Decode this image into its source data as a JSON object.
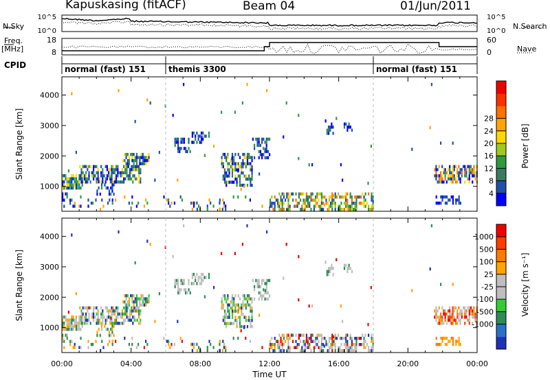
{
  "header": {
    "station": "Kapuskasing (fitACF)",
    "beam": "Beam 04",
    "date": "01/Jun/2011"
  },
  "top_panels": {
    "nsky_label": "N.Sky",
    "nsky_ticks": [
      "10^5",
      "10^0"
    ],
    "nsearch_label": "N.Search",
    "nsearch_ticks": [
      "10^5",
      "10^0"
    ],
    "freq_label": "Freq.",
    "freq_unit": "[MHz]",
    "freq_ticks": [
      "18",
      "8"
    ],
    "nave_label": "Nave",
    "nave_ticks": [
      "60",
      "0"
    ],
    "cpid_label": "CPID",
    "cpid_segments": [
      {
        "label": "normal (fast) 151",
        "start_hour": 0,
        "end_hour": 6
      },
      {
        "label": "themis 3300",
        "start_hour": 6,
        "end_hour": 18
      },
      {
        "label": "normal (fast) 151",
        "start_hour": 18,
        "end_hour": 24
      }
    ]
  },
  "chart_data": [
    {
      "type": "heatmap",
      "name": "power-panel",
      "ylabel": "Slant Range [km]",
      "xlabel": "Time UT",
      "x_ticks": [
        "00:00",
        "04:00",
        "08:00",
        "12:00",
        "16:00",
        "20:00",
        "00:00"
      ],
      "xlim": [
        0,
        24
      ],
      "ylim": [
        180,
        4600
      ],
      "y_ticks": [
        1000,
        2000,
        3000,
        4000
      ],
      "colorbar": {
        "label": "Power [dB]",
        "ticks": [
          "4",
          "8",
          "12",
          "16",
          "20",
          "24",
          "28"
        ],
        "colors": [
          "#0000ff",
          "#1f4faa",
          "#3a7a60",
          "#2e9a40",
          "#a0c81e",
          "#ffd700",
          "#ffa500",
          "#ff7000",
          "#ff3000",
          "#ee0000"
        ]
      }
    },
    {
      "type": "heatmap",
      "name": "velocity-panel",
      "ylabel": "Slant Range [km]",
      "xlabel": "Time UT",
      "x_ticks": [
        "00:00",
        "04:00",
        "08:00",
        "12:00",
        "16:00",
        "20:00",
        "00:00"
      ],
      "xlim": [
        0,
        24
      ],
      "ylim": [
        180,
        4600
      ],
      "y_ticks": [
        1000,
        2000,
        3000,
        4000
      ],
      "colorbar": {
        "label": "Velocity [m s⁻¹]",
        "ticks": [
          "1000",
          "500",
          "100",
          "25",
          "-25",
          "-100",
          "-500",
          "-1000"
        ],
        "colors": [
          "#1e32b4",
          "#2c6fc8",
          "#2e8b57",
          "#32cd32",
          "#bebebe",
          "#bebebe",
          "#ffa500",
          "#ff7800",
          "#ff3c00",
          "#ee0000"
        ]
      }
    }
  ],
  "colors": {
    "ground_scatter": "#bebebe",
    "axis": "#000000",
    "dashed_line": "#bbbbbb"
  },
  "xlabel_text": "Time UT"
}
